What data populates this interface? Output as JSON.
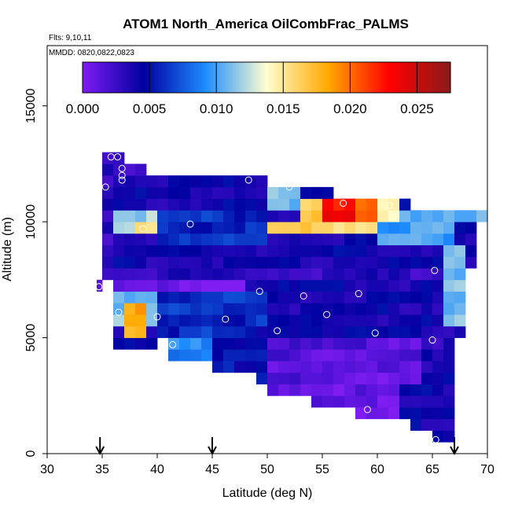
{
  "chart_data": {
    "type": "heatmap",
    "title": "ATOM1 North_America OilCombFrac_PALMS",
    "flights_note": "Flts: 9,10,11",
    "dates_note": "MMDD: 0820,0822,0823",
    "xlabel": "Latitude (deg N)",
    "ylabel": "Altitude (m)",
    "xlim": [
      30,
      70
    ],
    "ylim": [
      0,
      17600
    ],
    "xticks": [
      "30",
      "35",
      "40",
      "45",
      "50",
      "55",
      "60",
      "65",
      "70"
    ],
    "yticks": [
      "0",
      "5000",
      "10000",
      "15000"
    ],
    "grid": false,
    "colorbar": {
      "range": [
        0,
        0.0275
      ],
      "ticks": [
        "0.000",
        "0.005",
        "0.010",
        "0.015",
        "0.020",
        "0.025"
      ],
      "colors": [
        "#7e1cf2",
        "#0000a0",
        "#1c8cff",
        "#ffffd0",
        "#ffaa00",
        "#ff0000",
        "#8b1a1a"
      ]
    },
    "arrow_latitudes": [
      34.8,
      45,
      67
    ],
    "bins": {
      "lat_step": 1,
      "alt_step": 500
    },
    "region_columns": [
      {
        "lat": 35,
        "bot": 7500,
        "top": 13000
      },
      {
        "lat": 36,
        "bot": 4500,
        "top": 13000
      },
      {
        "lat": 37,
        "bot": 4500,
        "top": 12500
      },
      {
        "lat": 38,
        "bot": 4500,
        "top": 12500
      },
      {
        "lat": 39,
        "bot": 4500,
        "top": 12000
      },
      {
        "lat": 40,
        "bot": 5000,
        "top": 12000
      },
      {
        "lat": 41,
        "bot": 4000,
        "top": 12000
      },
      {
        "lat": 42,
        "bot": 4000,
        "top": 12000
      },
      {
        "lat": 43,
        "bot": 4000,
        "top": 12000
      },
      {
        "lat": 44,
        "bot": 4000,
        "top": 12000
      },
      {
        "lat": 45,
        "bot": 3500,
        "top": 12000
      },
      {
        "lat": 46,
        "bot": 3500,
        "top": 12000
      },
      {
        "lat": 47,
        "bot": 3500,
        "top": 12000
      },
      {
        "lat": 48,
        "bot": 3500,
        "top": 12000
      },
      {
        "lat": 49,
        "bot": 3000,
        "top": 12000
      },
      {
        "lat": 50,
        "bot": 2500,
        "top": 11500
      },
      {
        "lat": 51,
        "bot": 2500,
        "top": 11500
      },
      {
        "lat": 52,
        "bot": 2500,
        "top": 11500
      },
      {
        "lat": 53,
        "bot": 2500,
        "top": 11500
      },
      {
        "lat": 54,
        "bot": 2000,
        "top": 11500
      },
      {
        "lat": 55,
        "bot": 2000,
        "top": 11500
      },
      {
        "lat": 56,
        "bot": 2000,
        "top": 11000
      },
      {
        "lat": 57,
        "bot": 2000,
        "top": 11000
      },
      {
        "lat": 58,
        "bot": 1500,
        "top": 11000
      },
      {
        "lat": 59,
        "bot": 1500,
        "top": 11000
      },
      {
        "lat": 60,
        "bot": 1500,
        "top": 11000
      },
      {
        "lat": 61,
        "bot": 1500,
        "top": 11000
      },
      {
        "lat": 62,
        "bot": 1500,
        "top": 11000
      },
      {
        "lat": 63,
        "bot": 1000,
        "top": 10500
      },
      {
        "lat": 64,
        "bot": 1000,
        "top": 10500
      },
      {
        "lat": 65,
        "bot": 500,
        "top": 10500
      },
      {
        "lat": 66,
        "bot": 500,
        "top": 10500
      },
      {
        "lat": 67,
        "bot": 5000,
        "top": 10500
      },
      {
        "lat": 68,
        "bot": 8000,
        "top": 10500
      },
      {
        "lat": 69,
        "bot": 10000,
        "top": 10500
      },
      {
        "lat": 34.5,
        "bot": 7000,
        "top": 7500
      }
    ],
    "value_regions": [
      {
        "lat": [
          35,
          36
        ],
        "alt": [
          7500,
          13000
        ],
        "value": 0.003
      },
      {
        "lat": [
          36,
          40
        ],
        "alt": [
          12000,
          12500
        ],
        "value": 0.0015
      },
      {
        "lat": [
          36,
          50
        ],
        "alt": [
          11000,
          12000
        ],
        "value": 0.004
      },
      {
        "lat": [
          50,
          53
        ],
        "alt": [
          10500,
          11500
        ],
        "value": 0.011
      },
      {
        "lat": [
          53,
          55
        ],
        "alt": [
          10000,
          11000
        ],
        "value": 0.017
      },
      {
        "lat": [
          55,
          58
        ],
        "alt": [
          10000,
          11000
        ],
        "value": 0.023
      },
      {
        "lat": [
          58,
          60
        ],
        "alt": [
          10000,
          11000
        ],
        "value": 0.02
      },
      {
        "lat": [
          60,
          62
        ],
        "alt": [
          10000,
          11000
        ],
        "value": 0.014
      },
      {
        "lat": [
          62,
          70
        ],
        "alt": [
          10000,
          10500
        ],
        "value": 0.011
      },
      {
        "lat": [
          50,
          60
        ],
        "alt": [
          9500,
          10000
        ],
        "value": 0.016
      },
      {
        "lat": [
          60,
          67
        ],
        "alt": [
          9000,
          10000
        ],
        "value": 0.01
      },
      {
        "lat": [
          36,
          40
        ],
        "alt": [
          9500,
          10500
        ],
        "value": 0.012
      },
      {
        "lat": [
          38,
          40
        ],
        "alt": [
          9500,
          10000
        ],
        "value": 0.015
      },
      {
        "lat": [
          40,
          50
        ],
        "alt": [
          9000,
          10500
        ],
        "value": 0.006
      },
      {
        "lat": [
          36,
          66
        ],
        "alt": [
          8000,
          9000
        ],
        "value": 0.004
      },
      {
        "lat": [
          36,
          66
        ],
        "alt": [
          7500,
          8000
        ],
        "value": 0.003
      },
      {
        "lat": [
          34.5,
          48
        ],
        "alt": [
          7000,
          7500
        ],
        "value": 0.0005
      },
      {
        "lat": [
          36,
          40
        ],
        "alt": [
          5500,
          7000
        ],
        "value": 0.011
      },
      {
        "lat": [
          37,
          39
        ],
        "alt": [
          5000,
          6500
        ],
        "value": 0.018
      },
      {
        "lat": [
          40,
          50
        ],
        "alt": [
          5000,
          7000
        ],
        "value": 0.006
      },
      {
        "lat": [
          41,
          45
        ],
        "alt": [
          4000,
          5000
        ],
        "value": 0.009
      },
      {
        "lat": [
          45,
          55
        ],
        "alt": [
          3000,
          5500
        ],
        "value": 0.005
      },
      {
        "lat": [
          50,
          64
        ],
        "alt": [
          1500,
          5000
        ],
        "value": 0.0015
      },
      {
        "lat": [
          56,
          62
        ],
        "alt": [
          1500,
          4000
        ],
        "value": 0.0008
      },
      {
        "lat": [
          62,
          67
        ],
        "alt": [
          500,
          3000
        ],
        "value": 0.004
      },
      {
        "lat": [
          65,
          67
        ],
        "alt": [
          4000,
          7500
        ],
        "value": 0.003
      },
      {
        "lat": [
          66,
          68
        ],
        "alt": [
          5500,
          9000
        ],
        "value": 0.011
      }
    ],
    "sample_points": [
      {
        "lat": 35.8,
        "alt": 12800
      },
      {
        "lat": 36.4,
        "alt": 12800
      },
      {
        "lat": 36.8,
        "alt": 12300
      },
      {
        "lat": 36.8,
        "alt": 12000
      },
      {
        "lat": 36.8,
        "alt": 11800
      },
      {
        "lat": 35.3,
        "alt": 11500
      },
      {
        "lat": 48.3,
        "alt": 11800
      },
      {
        "lat": 52.0,
        "alt": 11500
      },
      {
        "lat": 56.9,
        "alt": 10800
      },
      {
        "lat": 61.1,
        "alt": 10700
      },
      {
        "lat": 43.0,
        "alt": 9900
      },
      {
        "lat": 38.7,
        "alt": 9700
      },
      {
        "lat": 65.2,
        "alt": 7900
      },
      {
        "lat": 34.7,
        "alt": 7200
      },
      {
        "lat": 49.3,
        "alt": 7000
      },
      {
        "lat": 53.3,
        "alt": 6800
      },
      {
        "lat": 58.3,
        "alt": 6900
      },
      {
        "lat": 36.5,
        "alt": 6100
      },
      {
        "lat": 40.0,
        "alt": 5900
      },
      {
        "lat": 55.4,
        "alt": 6000
      },
      {
        "lat": 46.2,
        "alt": 5800
      },
      {
        "lat": 50.9,
        "alt": 5300
      },
      {
        "lat": 59.8,
        "alt": 5200
      },
      {
        "lat": 41.4,
        "alt": 4700
      },
      {
        "lat": 65.0,
        "alt": 4900
      },
      {
        "lat": 59.1,
        "alt": 1900
      },
      {
        "lat": 65.3,
        "alt": 600
      }
    ]
  }
}
